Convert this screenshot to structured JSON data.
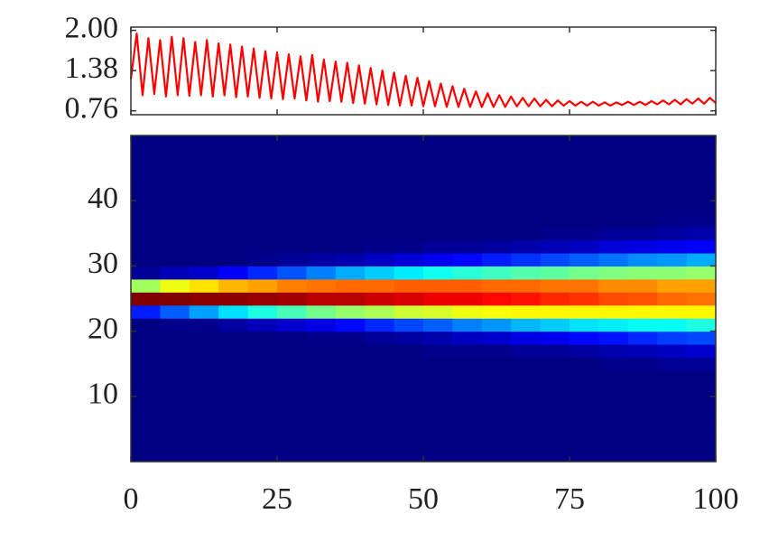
{
  "chart_data": [
    {
      "type": "line",
      "x": [
        0,
        1,
        2,
        3,
        4,
        5,
        6,
        7,
        8,
        9,
        10,
        11,
        12,
        13,
        14,
        15,
        16,
        17,
        18,
        19,
        20,
        21,
        22,
        23,
        24,
        25,
        26,
        27,
        28,
        29,
        30,
        31,
        32,
        33,
        34,
        35,
        36,
        37,
        38,
        39,
        40,
        41,
        42,
        43,
        44,
        45,
        46,
        47,
        48,
        49,
        50,
        51,
        52,
        53,
        54,
        55,
        56,
        57,
        58,
        59,
        60,
        61,
        62,
        63,
        64,
        65,
        66,
        67,
        68,
        69,
        70,
        71,
        72,
        73,
        74,
        75,
        76,
        77,
        78,
        79,
        80,
        81,
        82,
        83,
        84,
        85,
        86,
        87,
        88,
        89,
        90,
        91,
        92,
        93,
        94,
        95,
        96,
        97,
        98,
        99,
        100
      ],
      "series": [
        {
          "color": "#ff0000",
          "values": [
            1.25,
            1.95,
            1.0,
            1.88,
            1.02,
            1.85,
            0.98,
            1.9,
            1.0,
            1.88,
            0.99,
            1.82,
            1.0,
            1.85,
            0.98,
            1.8,
            1.0,
            1.78,
            0.97,
            1.75,
            0.98,
            1.72,
            0.96,
            1.68,
            0.95,
            1.66,
            0.94,
            1.63,
            0.95,
            1.6,
            0.92,
            1.62,
            0.9,
            1.55,
            0.91,
            1.52,
            0.9,
            1.5,
            0.88,
            1.46,
            0.87,
            1.42,
            0.86,
            1.38,
            0.85,
            1.35,
            0.84,
            1.3,
            0.84,
            1.27,
            0.83,
            1.22,
            0.83,
            1.18,
            0.82,
            1.14,
            0.82,
            1.1,
            0.82,
            1.06,
            0.82,
            1.03,
            0.82,
            1.0,
            0.82,
            0.98,
            0.83,
            0.96,
            0.83,
            0.95,
            0.83,
            0.93,
            0.83,
            0.92,
            0.84,
            0.91,
            0.84,
            0.9,
            0.84,
            0.9,
            0.84,
            0.89,
            0.84,
            0.89,
            0.85,
            0.9,
            0.85,
            0.9,
            0.85,
            0.91,
            0.86,
            0.92,
            0.86,
            0.93,
            0.86,
            0.94,
            0.87,
            0.95,
            0.87,
            0.96,
            0.88
          ]
        }
      ],
      "xlim": [
        0,
        100
      ],
      "xticks": [
        0,
        25,
        50,
        75,
        100
      ],
      "ylim": [
        0.7,
        2.05
      ],
      "yticks": [
        0.76,
        1.38,
        {
          "value": 2,
          "label": "2.00"
        }
      ]
    },
    {
      "type": "heatmap",
      "colormap": "jet",
      "xlim": [
        0,
        100
      ],
      "ylim": [
        0,
        50
      ],
      "xticks": [
        0,
        25,
        50,
        75,
        100
      ],
      "yticks": [
        10,
        20,
        30,
        40
      ],
      "z": [
        [
          0,
          0,
          0,
          0,
          0,
          0,
          0,
          0,
          0,
          0,
          0,
          0,
          0,
          0,
          0,
          0,
          0,
          0,
          0,
          0
        ],
        [
          0,
          0,
          0,
          0,
          0,
          0,
          0,
          0,
          0,
          0,
          0,
          0,
          0,
          0,
          0,
          0,
          0,
          0,
          0,
          0
        ],
        [
          0,
          0,
          0,
          0,
          0,
          0,
          0,
          0,
          0,
          0,
          0,
          0,
          0,
          0,
          0,
          0,
          0,
          0,
          0,
          0
        ],
        [
          0,
          0,
          0,
          0,
          0,
          0,
          0,
          0,
          0,
          0,
          0,
          0,
          0,
          0,
          0,
          0,
          0,
          0,
          0,
          0
        ],
        [
          0,
          0,
          0,
          0,
          0,
          0,
          0,
          0,
          0,
          0,
          0,
          0,
          0,
          0,
          0,
          0,
          0,
          0,
          0,
          0
        ],
        [
          0,
          0,
          0,
          0,
          0,
          0,
          0,
          0,
          0,
          0,
          0,
          0,
          0,
          0,
          0,
          0,
          0,
          0,
          0,
          0
        ],
        [
          0,
          0,
          0,
          0,
          0,
          0,
          0,
          0,
          0,
          0,
          0,
          0,
          0,
          0,
          0,
          0,
          0,
          0,
          0,
          0
        ],
        [
          0,
          0,
          0,
          0,
          0,
          0,
          0,
          0,
          0,
          0,
          0,
          0,
          0,
          0,
          0,
          0,
          0.01,
          0.01,
          0.02,
          0.02
        ],
        [
          0,
          0,
          0,
          0,
          0,
          0,
          0,
          0,
          0,
          0,
          0.01,
          0.01,
          0.01,
          0.02,
          0.02,
          0.03,
          0.04,
          0.05,
          0.06,
          0.07
        ],
        [
          0,
          0,
          0,
          0,
          0,
          0,
          0.01,
          0.01,
          0.02,
          0.03,
          0.04,
          0.06,
          0.07,
          0.09,
          0.1,
          0.12,
          0.13,
          0.15,
          0.17,
          0.18
        ],
        [
          0,
          0.01,
          0.01,
          0.03,
          0.05,
          0.07,
          0.09,
          0.12,
          0.15,
          0.18,
          0.2,
          0.23,
          0.25,
          0.28,
          0.3,
          0.32,
          0.33,
          0.35,
          0.35,
          0.37
        ],
        [
          0.14,
          0.2,
          0.26,
          0.32,
          0.37,
          0.41,
          0.45,
          0.48,
          0.5,
          0.53,
          0.54,
          0.56,
          0.57,
          0.58,
          0.58,
          0.58,
          0.58,
          0.58,
          0.58,
          0.58
        ],
        [
          0.92,
          0.92,
          0.91,
          0.91,
          0.9,
          0.89,
          0.87,
          0.87,
          0.85,
          0.84,
          0.82,
          0.82,
          0.8,
          0.79,
          0.77,
          0.76,
          0.74,
          0.73,
          0.71,
          0.7
        ],
        [
          0.49,
          0.56,
          0.6,
          0.64,
          0.66,
          0.69,
          0.7,
          0.71,
          0.71,
          0.72,
          0.72,
          0.72,
          0.71,
          0.71,
          0.7,
          0.7,
          0.68,
          0.68,
          0.66,
          0.66
        ],
        [
          0.02,
          0.05,
          0.07,
          0.11,
          0.15,
          0.19,
          0.23,
          0.27,
          0.3,
          0.33,
          0.36,
          0.38,
          0.4,
          0.42,
          0.43,
          0.45,
          0.46,
          0.47,
          0.47,
          0.48
        ],
        [
          0,
          0,
          0,
          0,
          0.01,
          0.02,
          0.03,
          0.04,
          0.06,
          0.08,
          0.1,
          0.12,
          0.14,
          0.16,
          0.18,
          0.2,
          0.22,
          0.24,
          0.25,
          0.27
        ],
        [
          0,
          0,
          0,
          0,
          0,
          0,
          0,
          0,
          0.01,
          0.01,
          0.02,
          0.02,
          0.03,
          0.04,
          0.05,
          0.06,
          0.08,
          0.09,
          0.1,
          0.11
        ],
        [
          0,
          0,
          0,
          0,
          0,
          0,
          0,
          0,
          0,
          0,
          0,
          0,
          0,
          0,
          0.01,
          0.01,
          0.02,
          0.02,
          0.03,
          0.04
        ],
        [
          0,
          0,
          0,
          0,
          0,
          0,
          0,
          0,
          0,
          0,
          0,
          0,
          0,
          0,
          0,
          0,
          0,
          0,
          0.01,
          0.01
        ],
        [
          0,
          0,
          0,
          0,
          0,
          0,
          0,
          0,
          0,
          0,
          0,
          0,
          0,
          0,
          0,
          0,
          0,
          0,
          0,
          0
        ],
        [
          0,
          0,
          0,
          0,
          0,
          0,
          0,
          0,
          0,
          0,
          0,
          0,
          0,
          0,
          0,
          0,
          0,
          0,
          0,
          0
        ],
        [
          0,
          0,
          0,
          0,
          0,
          0,
          0,
          0,
          0,
          0,
          0,
          0,
          0,
          0,
          0,
          0,
          0,
          0,
          0,
          0
        ],
        [
          0,
          0,
          0,
          0,
          0,
          0,
          0,
          0,
          0,
          0,
          0,
          0,
          0,
          0,
          0,
          0,
          0,
          0,
          0,
          0
        ],
        [
          0,
          0,
          0,
          0,
          0,
          0,
          0,
          0,
          0,
          0,
          0,
          0,
          0,
          0,
          0,
          0,
          0,
          0,
          0,
          0
        ],
        [
          0,
          0,
          0,
          0,
          0,
          0,
          0,
          0,
          0,
          0,
          0,
          0,
          0,
          0,
          0,
          0,
          0,
          0,
          0,
          0
        ]
      ]
    }
  ]
}
